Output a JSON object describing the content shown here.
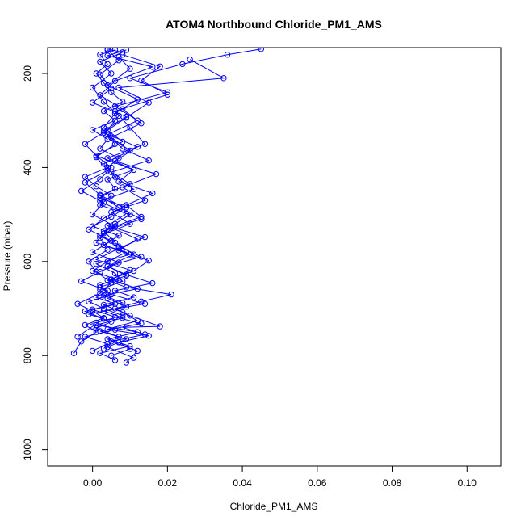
{
  "chart_data": {
    "type": "line",
    "title": "ATOM4 Northbound Chloride_PM1_AMS",
    "xlabel": "Chloride_PM1_AMS",
    "ylabel": "Pressure (mbar)",
    "xlim": [
      -0.012,
      0.109
    ],
    "ylim": [
      1035,
      145
    ],
    "y_axis_reversed": true,
    "x_ticks": [
      {
        "value": 0.0,
        "label": "0.00"
      },
      {
        "value": 0.02,
        "label": "0.02"
      },
      {
        "value": 0.04,
        "label": "0.04"
      },
      {
        "value": 0.06,
        "label": "0.06"
      },
      {
        "value": 0.08,
        "label": "0.08"
      },
      {
        "value": 0.1,
        "label": "0.10"
      }
    ],
    "y_ticks": [
      {
        "value": 200,
        "label": "200"
      },
      {
        "value": 400,
        "label": "400"
      },
      {
        "value": 600,
        "label": "600"
      },
      {
        "value": 800,
        "label": "800"
      },
      {
        "value": 1000,
        "label": "1000"
      }
    ],
    "grid": false,
    "legend": "none",
    "series_color": "#0000ff",
    "marker": "open-circle",
    "series": [
      {
        "x": [
          0.0,
          0.004,
          -0.002,
          0.006,
          0.001,
          0.008,
          0.003,
          -0.001,
          0.005,
          0.002,
          0.007,
          0.0,
          0.004,
          0.009,
          0.001,
          0.003,
          0.006,
          0.01,
          0.002,
          0.005,
          0.001,
          -0.002,
          0.004,
          0.007,
          0.002,
          0.004,
          0.0,
          0.006,
          0.003,
          0.008,
          0.005,
          0.003,
          0.001,
          0.004,
          0.002,
          0.006
        ],
        "y": [
          790,
          775,
          760,
          745,
          730,
          715,
          700,
          685,
          670,
          655,
          640,
          620,
          600,
          580,
          560,
          540,
          520,
          500,
          480,
          460,
          440,
          420,
          400,
          380,
          360,
          340,
          320,
          300,
          280,
          260,
          240,
          220,
          200,
          180,
          160,
          150
        ]
      },
      {
        "x": [
          0.006,
          0.002,
          0.01,
          0.004,
          0.012,
          0.001,
          0.008,
          0.003,
          0.014,
          0.005,
          0.002,
          0.009,
          0.004,
          0.011,
          0.006,
          0.003,
          0.013,
          0.007,
          0.002,
          0.01,
          0.005,
          0.015,
          0.008,
          0.004,
          0.012,
          0.006,
          0.02,
          0.01,
          0.024,
          0.036,
          0.045
        ],
        "y": [
          810,
          795,
          780,
          765,
          750,
          735,
          720,
          705,
          690,
          670,
          650,
          630,
          610,
          585,
          560,
          535,
          510,
          485,
          460,
          435,
          410,
          385,
          360,
          330,
          300,
          270,
          240,
          210,
          180,
          160,
          148
        ]
      },
      {
        "x": [
          -0.005,
          -0.003,
          0.001,
          -0.002,
          0.003,
          0.0,
          -0.004,
          0.002,
          0.005,
          0.001,
          -0.001,
          0.004,
          0.002,
          0.006,
          0.0,
          0.003,
          -0.003,
          0.002,
          0.005,
          0.001,
          -0.002,
          0.004,
          0.007,
          0.003,
          0.0,
          0.005,
          0.002,
          0.008,
          0.004
        ],
        "y": [
          795,
          770,
          750,
          735,
          720,
          705,
          690,
          668,
          645,
          622,
          600,
          575,
          550,
          525,
          500,
          475,
          450,
          425,
          400,
          375,
          350,
          320,
          290,
          260,
          230,
          200,
          175,
          155,
          148
        ]
      },
      {
        "x": [
          0.009,
          0.012,
          0.005,
          0.014,
          0.008,
          0.018,
          0.01,
          0.006,
          0.013,
          0.021,
          0.009,
          0.004,
          0.011,
          0.015,
          0.007,
          0.012,
          0.005,
          0.013,
          0.009,
          0.016,
          0.007,
          0.011,
          0.004,
          0.014,
          0.01,
          0.006,
          0.02,
          0.013,
          0.018,
          0.008
        ],
        "y": [
          815,
          790,
          770,
          755,
          740,
          738,
          715,
          700,
          685,
          670,
          655,
          640,
          620,
          598,
          576,
          552,
          528,
          505,
          480,
          455,
          430,
          405,
          380,
          350,
          315,
          280,
          245,
          215,
          185,
          160
        ]
      },
      {
        "x": [
          0.003,
          0.007,
          0.001,
          0.005,
          -0.001,
          0.009,
          0.004,
          0.002,
          0.008,
          0.006,
          0.001,
          0.01,
          0.003,
          0.007,
          0.0,
          0.005,
          0.009,
          0.002,
          0.006,
          0.004,
          0.011,
          0.001,
          0.008,
          0.003,
          0.006,
          0.012,
          0.004,
          0.01,
          0.007
        ],
        "y": [
          785,
          760,
          742,
          728,
          712,
          696,
          678,
          660,
          642,
          625,
          605,
          585,
          565,
          545,
          525,
          505,
          485,
          465,
          445,
          425,
          405,
          375,
          345,
          315,
          285,
          255,
          225,
          190,
          165
        ]
      },
      {
        "x": [
          0.011,
          0.004,
          0.009,
          0.002,
          0.013,
          0.006,
          0.0,
          0.008,
          0.003,
          0.012,
          0.005,
          0.01,
          0.001,
          0.007,
          0.014,
          0.004,
          0.009,
          0.002,
          0.011,
          0.006,
          0.003,
          0.01,
          0.005,
          0.013,
          0.008,
          0.002,
          0.006,
          0.016,
          0.004,
          0.009
        ],
        "y": [
          805,
          782,
          765,
          748,
          732,
          718,
          702,
          688,
          672,
          658,
          638,
          618,
          596,
          572,
          548,
          524,
          498,
          472,
          446,
          420,
          392,
          364,
          336,
          306,
          276,
          246,
          216,
          186,
          162,
          150
        ]
      },
      {
        "x": [
          -0.004,
          0.0,
          0.003,
          -0.002,
          0.006,
          0.001,
          0.004,
          -0.003,
          0.002,
          0.007,
          0.0,
          0.005,
          -0.001,
          0.003,
          0.008,
          0.002,
          -0.002,
          0.004,
          0.001,
          0.006,
          0.003,
          0.009,
          0.0,
          0.005,
          0.002,
          0.007,
          0.004
        ],
        "y": [
          760,
          738,
          722,
          706,
          690,
          676,
          662,
          642,
          622,
          602,
          580,
          556,
          532,
          508,
          484,
          458,
          432,
          406,
          378,
          350,
          322,
          292,
          262,
          232,
          202,
          172,
          150
        ]
      },
      {
        "x": [
          0.005,
          0.01,
          0.007,
          0.015,
          0.004,
          0.012,
          0.008,
          0.003,
          0.011,
          0.006,
          0.016,
          0.009,
          0.004,
          0.013,
          0.007,
          0.002,
          0.01,
          0.005,
          0.014,
          0.008,
          0.017,
          0.006,
          0.012,
          0.003,
          0.009,
          0.015,
          0.007,
          0.035,
          0.026
        ],
        "y": [
          800,
          786,
          772,
          758,
          744,
          726,
          708,
          692,
          676,
          662,
          646,
          628,
          610,
          590,
          568,
          545,
          520,
          495,
          470,
          442,
          414,
          386,
          356,
          326,
          294,
          262,
          230,
          210,
          170
        ]
      }
    ]
  }
}
